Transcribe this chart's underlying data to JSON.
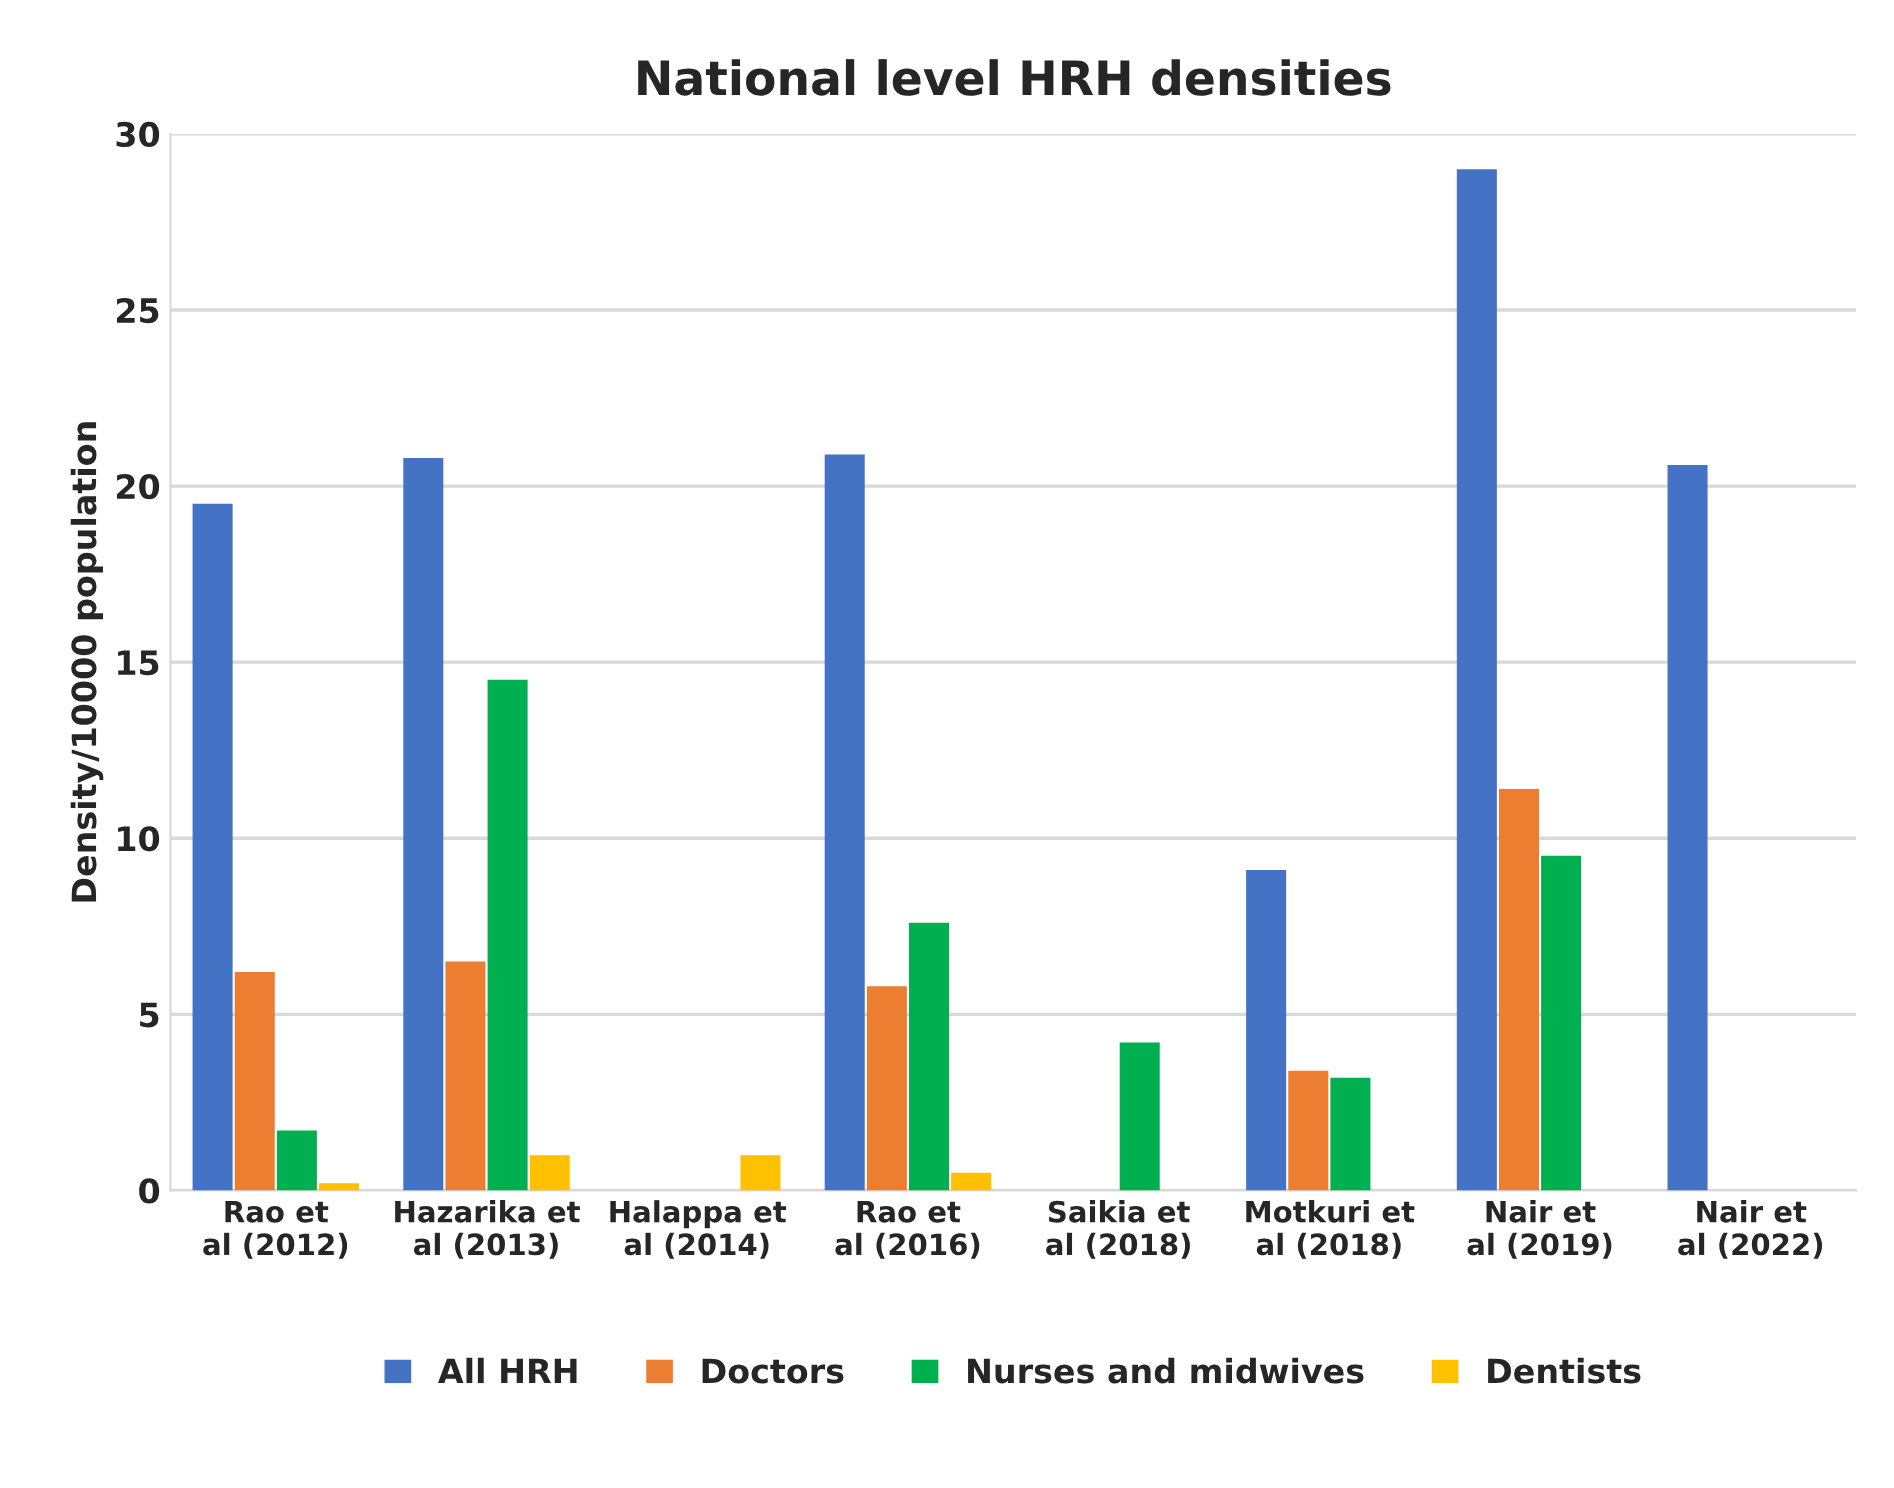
{
  "chart_data": {
    "type": "bar",
    "title": "National level HRH densities",
    "ylabel": "Density/10000 population",
    "categories": [
      "Rao et al (2012)",
      "Hazarika et al (2013)",
      "Halappa et al (2014)",
      "Rao et al (2016)",
      "Saikia et al (2018)",
      "Motkuri et al (2018)",
      "Nair et al (2019)",
      "Nair et al (2022)"
    ],
    "series": [
      {
        "name": "All HRH",
        "color": "#4472c4",
        "values": [
          19.5,
          20.8,
          null,
          20.9,
          null,
          9.1,
          29.0,
          20.6
        ]
      },
      {
        "name": "Doctors",
        "color": "#ed7d31",
        "values": [
          6.2,
          6.5,
          null,
          5.8,
          null,
          3.4,
          11.4,
          null
        ]
      },
      {
        "name": "Nurses and midwives",
        "color": "#00b050",
        "values": [
          1.7,
          14.5,
          null,
          7.6,
          4.2,
          3.2,
          9.5,
          null
        ]
      },
      {
        "name": "Dentists",
        "color": "#ffc000",
        "values": [
          0.2,
          1.0,
          1.0,
          0.5,
          null,
          null,
          null,
          null
        ]
      }
    ],
    "ylim": [
      0,
      30
    ],
    "yticks": [
      0,
      5,
      10,
      15,
      20,
      25,
      30
    ],
    "grid": "y",
    "legend": "bottom"
  }
}
